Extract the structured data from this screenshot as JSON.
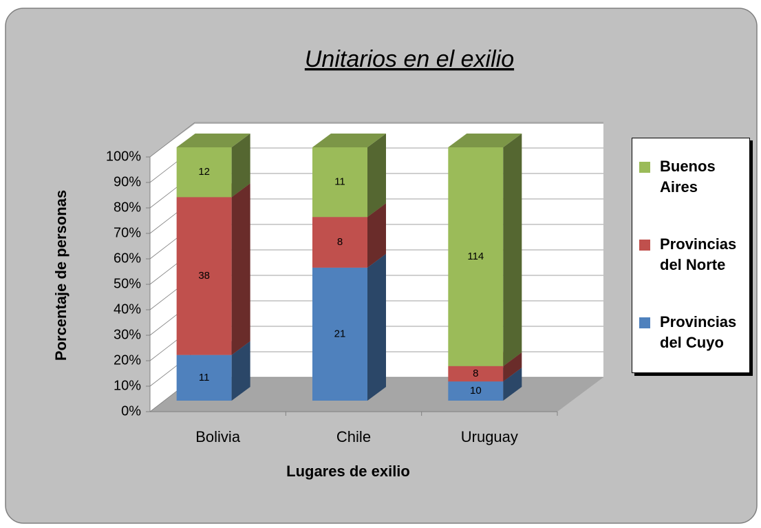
{
  "chart_data": {
    "type": "bar",
    "stacking": "percent",
    "title": "Unitarios en el exilio",
    "x_label": "Lugares de exilio",
    "y_label": "Porcentaje de personas",
    "categories": [
      "Bolivia",
      "Chile",
      "Uruguay"
    ],
    "series": [
      {
        "name": "Provincias del Cuyo",
        "color": "#4f81bd",
        "values": [
          11,
          21,
          10
        ]
      },
      {
        "name": "Provincias del Norte",
        "color": "#c0504d",
        "values": [
          38,
          8,
          8
        ]
      },
      {
        "name": "Buenos Aires",
        "color": "#9bbb59",
        "values": [
          12,
          11,
          114
        ]
      }
    ],
    "ylim": [
      0,
      100
    ],
    "yticks": [
      {
        "value": 0,
        "label": "0%"
      },
      {
        "value": 10,
        "label": "10%"
      },
      {
        "value": 20,
        "label": "20%"
      },
      {
        "value": 30,
        "label": "30%"
      },
      {
        "value": 40,
        "label": "40%"
      },
      {
        "value": 50,
        "label": "50%"
      },
      {
        "value": 60,
        "label": "60%"
      },
      {
        "value": 70,
        "label": "70%"
      },
      {
        "value": 80,
        "label": "80%"
      },
      {
        "value": 90,
        "label": "90%"
      },
      {
        "value": 100,
        "label": "100%"
      }
    ],
    "grid": true,
    "legend": "right"
  }
}
